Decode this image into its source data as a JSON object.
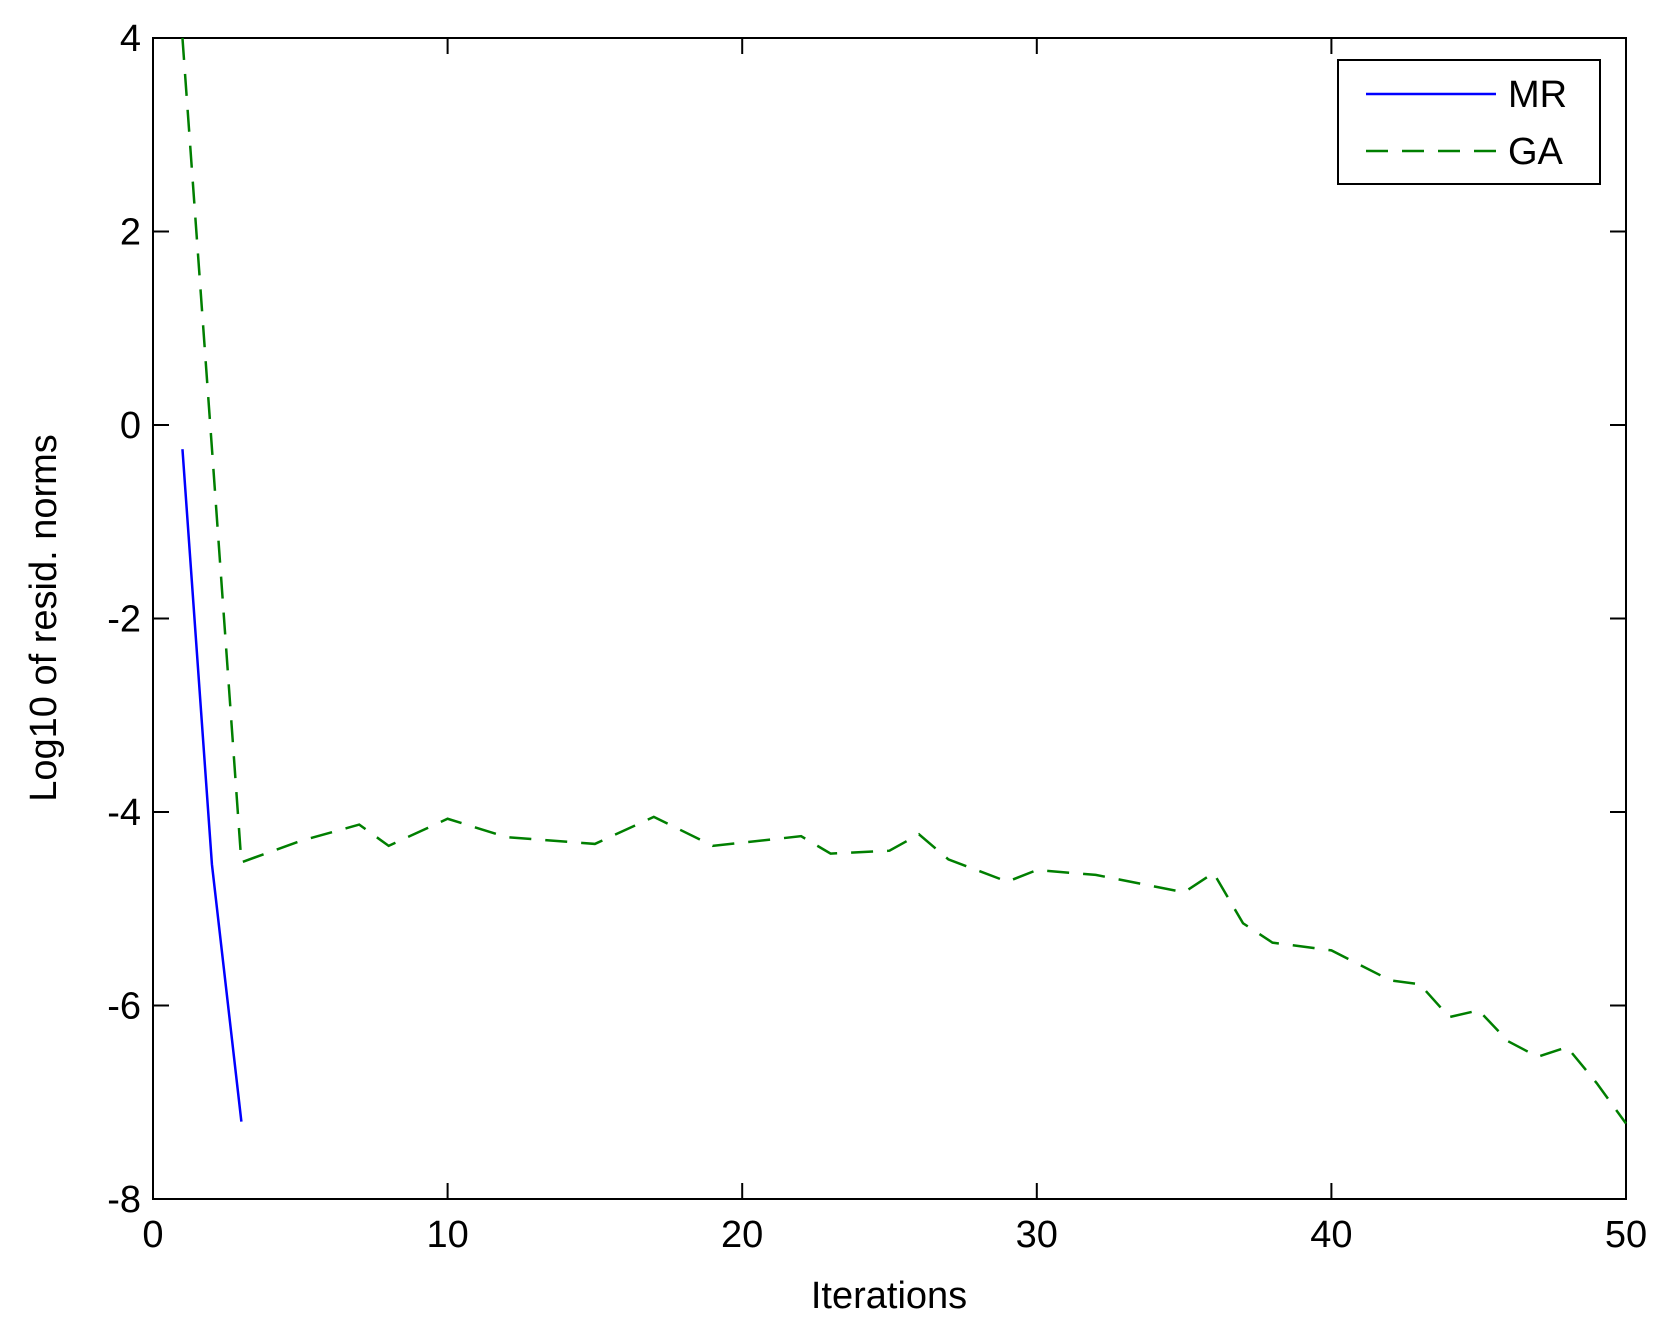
{
  "chart_data": {
    "type": "line",
    "x_label": "Iterations",
    "y_label": "Log10 of resid. norms",
    "xlim": [
      0,
      50
    ],
    "xticks": [
      0,
      10,
      20,
      30,
      40,
      50
    ],
    "ylim": [
      -8,
      4
    ],
    "yticks": [
      -8,
      -6,
      -4,
      -2,
      0,
      2,
      4
    ],
    "legend": "upper right",
    "series": [
      {
        "name": "MR",
        "color": "#0000ff",
        "dash": "solid",
        "x": [
          1,
          2,
          3
        ],
        "values": [
          -0.25,
          -4.54,
          -7.2
        ]
      },
      {
        "name": "GA",
        "color": "#007f00",
        "dash": "dashed",
        "x": [
          1,
          2,
          3,
          5,
          7,
          8,
          10,
          12,
          15,
          17,
          19,
          22,
          23,
          25,
          26,
          27,
          29,
          30,
          32,
          35,
          36,
          37,
          38,
          40,
          42,
          43,
          44,
          45,
          46,
          47,
          48,
          49,
          50
        ],
        "values": [
          4.0,
          -0.24,
          -4.52,
          -4.3,
          -4.13,
          -4.35,
          -4.07,
          -4.26,
          -4.33,
          -4.05,
          -4.35,
          -4.25,
          -4.43,
          -4.4,
          -4.23,
          -4.49,
          -4.72,
          -4.6,
          -4.65,
          -4.83,
          -4.63,
          -5.15,
          -5.35,
          -5.43,
          -5.74,
          -5.78,
          -6.12,
          -6.05,
          -6.37,
          -6.53,
          -6.43,
          -6.8,
          -7.22
        ]
      }
    ]
  }
}
